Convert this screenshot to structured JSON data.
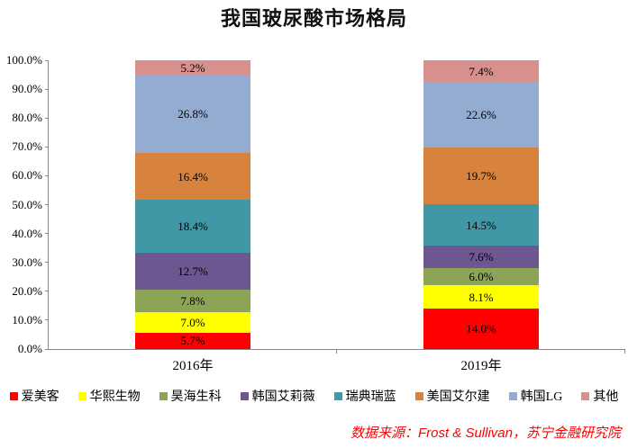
{
  "title": "我国玻尿酸市场格局",
  "footer": {
    "source": "数据来源：Frost & Sullivan，苏宁金融研究院"
  },
  "colors": {
    "axis": "#888888",
    "value_label": "#000000",
    "footer_text": "#fe0000"
  },
  "chart_data": {
    "type": "bar",
    "stacked": true,
    "title": "我国玻尿酸市场格局",
    "categories": [
      "2016年",
      "2019年"
    ],
    "series": [
      {
        "name": "爱美客",
        "color": "#ff0000",
        "values": [
          5.7,
          14.0
        ]
      },
      {
        "name": "华熙生物",
        "color": "#ffff00",
        "values": [
          7.0,
          8.1
        ]
      },
      {
        "name": "昊海生科",
        "color": "#8da355",
        "values": [
          7.8,
          6.0
        ]
      },
      {
        "name": "韩国艾莉薇",
        "color": "#6e5691",
        "values": [
          12.7,
          7.6
        ]
      },
      {
        "name": "瑞典瑞蓝",
        "color": "#4098a7",
        "values": [
          18.4,
          14.5
        ]
      },
      {
        "name": "美国艾尔建",
        "color": "#d7833d",
        "values": [
          16.4,
          19.7
        ]
      },
      {
        "name": "韩国LG",
        "color": "#95acd2",
        "values": [
          26.8,
          22.6
        ]
      },
      {
        "name": "其他",
        "color": "#d8908f",
        "values": [
          5.2,
          7.4
        ]
      }
    ],
    "value_labels": [
      [
        "5.7%",
        "7.0%",
        "7.8%",
        "12.7%",
        "18.4%",
        "16.4%",
        "26.8%",
        "5.2%"
      ],
      [
        "14.0%",
        "8.1%",
        "6.0%",
        "7.6%",
        "14.5%",
        "19.7%",
        "22.6%",
        "7.4%"
      ]
    ],
    "y_ticks": [
      "0.0%",
      "10.0%",
      "20.0%",
      "30.0%",
      "40.0%",
      "50.0%",
      "60.0%",
      "70.0%",
      "80.0%",
      "90.0%",
      "100.0%"
    ],
    "ylim": [
      0,
      100
    ],
    "xlabel": "",
    "ylabel": "",
    "grid": false,
    "legend_position": "bottom"
  }
}
